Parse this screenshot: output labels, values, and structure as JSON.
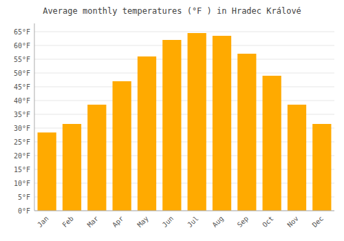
{
  "chart_data": {
    "type": "bar",
    "title": "Average monthly temperatures (°F ) in Hradec Králové",
    "categories": [
      "Jan",
      "Feb",
      "Mar",
      "Apr",
      "May",
      "Jun",
      "Jul",
      "Aug",
      "Sep",
      "Oct",
      "Nov",
      "Dec"
    ],
    "values": [
      28.4,
      31.5,
      38.5,
      47.0,
      56.0,
      62.0,
      64.5,
      63.5,
      57.0,
      49.0,
      38.5,
      31.5
    ],
    "color": "#FFAA00",
    "ylim": [
      0,
      68
    ],
    "yticks": [
      {
        "value": 0,
        "label": "0°F"
      },
      {
        "value": 5,
        "label": "5°F"
      },
      {
        "value": 10,
        "label": "10°F"
      },
      {
        "value": 15,
        "label": "15°F"
      },
      {
        "value": 20,
        "label": "20°F"
      },
      {
        "value": 25,
        "label": "25°F"
      },
      {
        "value": 30,
        "label": "30°F"
      },
      {
        "value": 35,
        "label": "35°F"
      },
      {
        "value": 40,
        "label": "40°F"
      },
      {
        "value": 45,
        "label": "45°F"
      },
      {
        "value": 50,
        "label": "50°F"
      },
      {
        "value": 55,
        "label": "55°F"
      },
      {
        "value": 60,
        "label": "60°F"
      },
      {
        "value": 65,
        "label": "65°F"
      }
    ],
    "grid": true
  }
}
